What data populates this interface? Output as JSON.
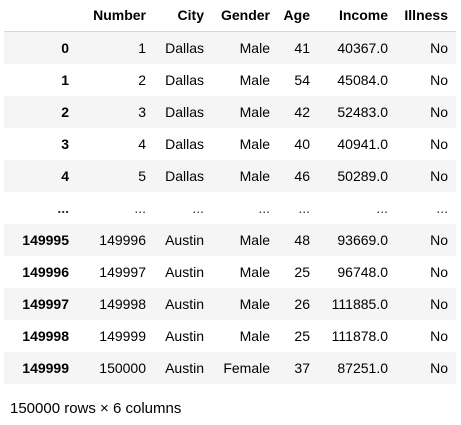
{
  "table": {
    "columns": [
      "",
      "Number",
      "City",
      "Gender",
      "Age",
      "Income",
      "Illness"
    ],
    "rows": [
      [
        "0",
        "1",
        "Dallas",
        "Male",
        "41",
        "40367.0",
        "No"
      ],
      [
        "1",
        "2",
        "Dallas",
        "Male",
        "54",
        "45084.0",
        "No"
      ],
      [
        "2",
        "3",
        "Dallas",
        "Male",
        "42",
        "52483.0",
        "No"
      ],
      [
        "3",
        "4",
        "Dallas",
        "Male",
        "40",
        "40941.0",
        "No"
      ],
      [
        "4",
        "5",
        "Dallas",
        "Male",
        "46",
        "50289.0",
        "No"
      ],
      [
        "...",
        "...",
        "...",
        "...",
        "...",
        "...",
        "..."
      ],
      [
        "149995",
        "149996",
        "Austin",
        "Male",
        "48",
        "93669.0",
        "No"
      ],
      [
        "149996",
        "149997",
        "Austin",
        "Male",
        "25",
        "96748.0",
        "No"
      ],
      [
        "149997",
        "149998",
        "Austin",
        "Male",
        "26",
        "111885.0",
        "No"
      ],
      [
        "149998",
        "149999",
        "Austin",
        "Male",
        "25",
        "111878.0",
        "No"
      ],
      [
        "149999",
        "150000",
        "Austin",
        "Female",
        "37",
        "87251.0",
        "No"
      ]
    ]
  },
  "shape_text": "150000 rows × 6 columns"
}
